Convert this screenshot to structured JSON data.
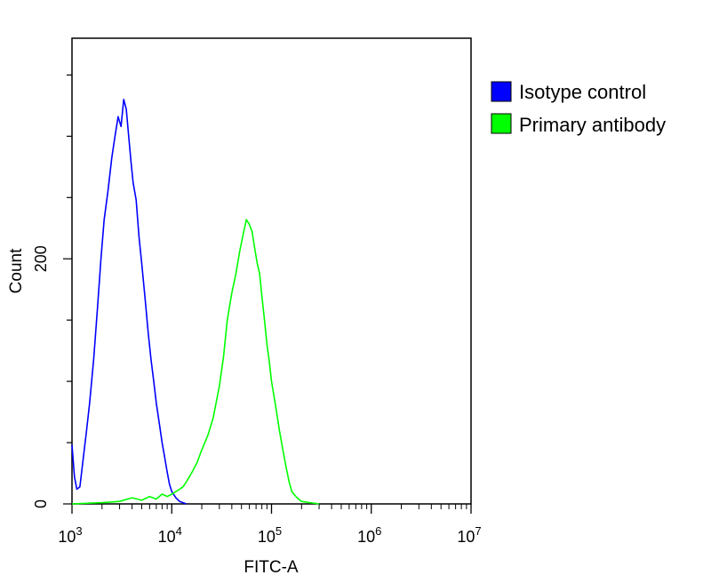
{
  "chart_data": {
    "type": "line",
    "xlabel": "FITC-A",
    "ylabel": "Count",
    "x_scale": "log",
    "xlim": [
      1000,
      10000000
    ],
    "ylim": [
      0,
      380
    ],
    "grid": false,
    "legend_position": "right",
    "x_ticks": [
      {
        "value": 1000,
        "base": "10",
        "exp": "3"
      },
      {
        "value": 10000,
        "base": "10",
        "exp": "4"
      },
      {
        "value": 100000,
        "base": "10",
        "exp": "5"
      },
      {
        "value": 1000000,
        "base": "10",
        "exp": "6"
      },
      {
        "value": 10000000,
        "base": "10",
        "exp": "7"
      }
    ],
    "y_ticks": [
      {
        "value": 0,
        "label": "0"
      },
      {
        "value": 200,
        "label": "200"
      }
    ],
    "series": [
      {
        "name": "Isotype control",
        "color": "#0000ff",
        "points": [
          [
            1000,
            48
          ],
          [
            1060,
            22
          ],
          [
            1120,
            12
          ],
          [
            1200,
            14
          ],
          [
            1300,
            38
          ],
          [
            1400,
            60
          ],
          [
            1500,
            82
          ],
          [
            1650,
            118
          ],
          [
            1800,
            160
          ],
          [
            1950,
            200
          ],
          [
            2100,
            232
          ],
          [
            2300,
            256
          ],
          [
            2500,
            282
          ],
          [
            2700,
            300
          ],
          [
            2900,
            316
          ],
          [
            3100,
            308
          ],
          [
            3300,
            330
          ],
          [
            3500,
            322
          ],
          [
            3700,
            300
          ],
          [
            3900,
            280
          ],
          [
            4100,
            262
          ],
          [
            4400,
            248
          ],
          [
            4700,
            218
          ],
          [
            5000,
            196
          ],
          [
            5400,
            168
          ],
          [
            5800,
            140
          ],
          [
            6200,
            118
          ],
          [
            6600,
            100
          ],
          [
            7000,
            82
          ],
          [
            7500,
            66
          ],
          [
            8000,
            50
          ],
          [
            8500,
            38
          ],
          [
            9000,
            26
          ],
          [
            9500,
            16
          ],
          [
            10000,
            10
          ],
          [
            11000,
            5
          ],
          [
            12000,
            2
          ],
          [
            13000,
            1
          ],
          [
            14000,
            0
          ]
        ]
      },
      {
        "name": "Primary antibody",
        "color": "#00ff00",
        "points": [
          [
            1000,
            0
          ],
          [
            2000,
            1
          ],
          [
            3000,
            2
          ],
          [
            4000,
            5
          ],
          [
            5000,
            3
          ],
          [
            6000,
            6
          ],
          [
            7000,
            4
          ],
          [
            8000,
            8
          ],
          [
            9000,
            6
          ],
          [
            10000,
            8
          ],
          [
            11000,
            10
          ],
          [
            12000,
            12
          ],
          [
            13000,
            14
          ],
          [
            14000,
            18
          ],
          [
            16000,
            26
          ],
          [
            18000,
            34
          ],
          [
            20000,
            44
          ],
          [
            23000,
            56
          ],
          [
            26000,
            70
          ],
          [
            30000,
            96
          ],
          [
            33000,
            120
          ],
          [
            36000,
            150
          ],
          [
            40000,
            172
          ],
          [
            44000,
            188
          ],
          [
            48000,
            206
          ],
          [
            52000,
            220
          ],
          [
            56000,
            232
          ],
          [
            60000,
            228
          ],
          [
            64000,
            222
          ],
          [
            68000,
            208
          ],
          [
            72000,
            196
          ],
          [
            76000,
            188
          ],
          [
            80000,
            170
          ],
          [
            85000,
            150
          ],
          [
            90000,
            130
          ],
          [
            95000,
            116
          ],
          [
            100000,
            100
          ],
          [
            110000,
            80
          ],
          [
            120000,
            60
          ],
          [
            130000,
            44
          ],
          [
            140000,
            30
          ],
          [
            150000,
            18
          ],
          [
            160000,
            10
          ],
          [
            180000,
            5
          ],
          [
            200000,
            2
          ],
          [
            240000,
            1
          ],
          [
            300000,
            0
          ]
        ]
      }
    ]
  }
}
